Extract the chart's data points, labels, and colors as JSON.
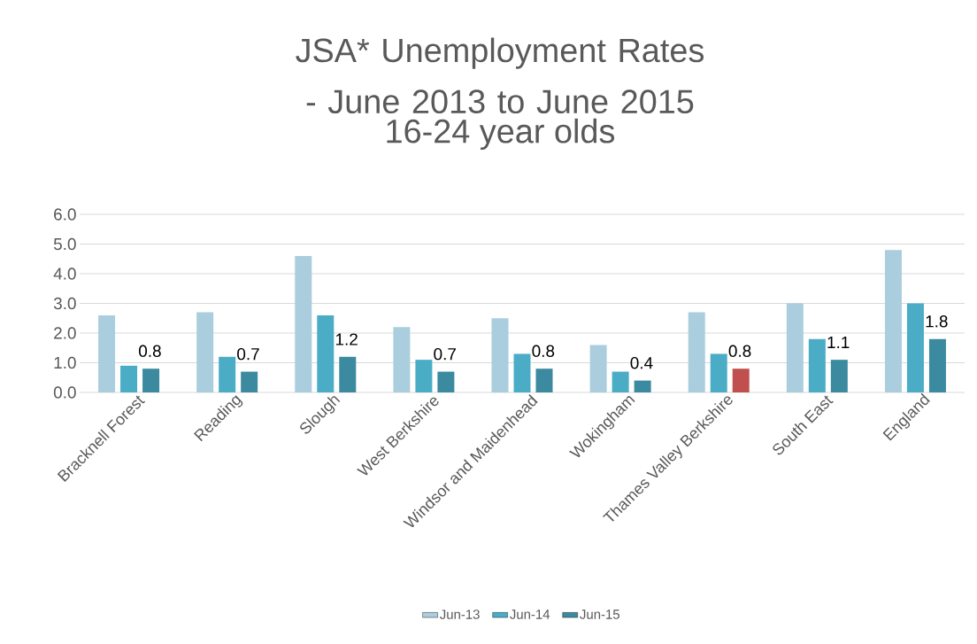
{
  "chart_data": {
    "type": "bar",
    "title": "JSA* Unemployment Rates - June 2013 to June 2015",
    "subtitle": "16-24 year olds",
    "categories": [
      "Bracknell Forest",
      "Reading",
      "Slough",
      "West Berkshire",
      "Windsor and Maidenhead",
      "Wokingham",
      "Thames Valley Berkshire",
      "South East",
      "England"
    ],
    "series": [
      {
        "name": "Jun-13",
        "color": "#aacedd",
        "values": [
          2.6,
          2.7,
          4.6,
          2.2,
          2.5,
          1.6,
          2.7,
          3.0,
          4.8
        ]
      },
      {
        "name": "Jun-14",
        "color": "#4bacc6",
        "values": [
          0.9,
          1.2,
          2.6,
          1.1,
          1.3,
          0.7,
          1.3,
          1.8,
          3.0
        ]
      },
      {
        "name": "Jun-15",
        "color": "#3c8aa0",
        "colors": [
          "#3c8aa0",
          "#3c8aa0",
          "#3c8aa0",
          "#3c8aa0",
          "#3c8aa0",
          "#3c8aa0",
          "#c0504d",
          "#3c8aa0",
          "#3c8aa0"
        ],
        "values": [
          0.8,
          0.7,
          1.2,
          0.7,
          0.8,
          0.4,
          0.8,
          1.1,
          1.8
        ],
        "value_labels": [
          "0.8",
          "0.7",
          "1.2",
          "0.7",
          "0.8",
          "0.4",
          "0.8",
          "1.1",
          "1.8"
        ]
      }
    ],
    "ylim": [
      0,
      6
    ],
    "yticks": [
      {
        "value": 0,
        "label": "0.0"
      },
      {
        "value": 1,
        "label": "1.0"
      },
      {
        "value": 2,
        "label": "2.0"
      },
      {
        "value": 3,
        "label": "3.0"
      },
      {
        "value": 4,
        "label": "4.0"
      },
      {
        "value": 5,
        "label": "5.0"
      },
      {
        "value": 6,
        "label": "6.0"
      }
    ],
    "grid": "y",
    "legend": "bottom"
  }
}
